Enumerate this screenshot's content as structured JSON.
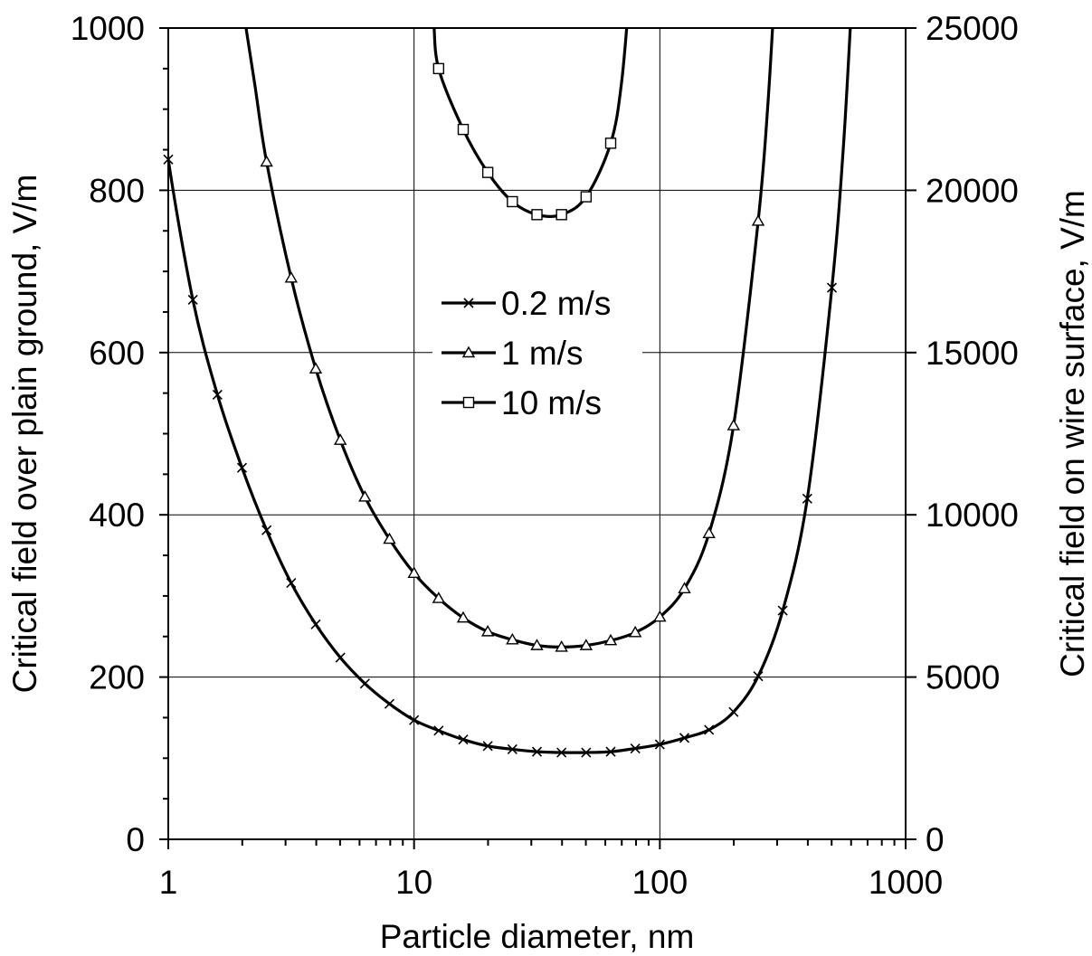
{
  "chart_data": {
    "type": "line",
    "title": "",
    "xlabel": "Particle diameter, nm",
    "ylabel": "Critical field over plain ground, V/m",
    "ylabel_right": "Critical field on wire surface, V/m",
    "xscale": "log",
    "xlim": [
      1,
      1000
    ],
    "ylim": [
      0,
      1000
    ],
    "ylim_right": [
      0,
      25000
    ],
    "x_ticks": [
      1,
      10,
      100,
      1000
    ],
    "x_tick_labels": [
      "1",
      "10",
      "100",
      "1000"
    ],
    "y_ticks": [
      0,
      200,
      400,
      600,
      800,
      1000
    ],
    "y_tick_labels": [
      "0",
      "200",
      "400",
      "600",
      "800",
      "1000"
    ],
    "y_right_ticks": [
      0,
      5000,
      10000,
      15000,
      20000,
      25000
    ],
    "y_right_tick_labels": [
      "0",
      "5000",
      "10000",
      "15000",
      "20000",
      "25000"
    ],
    "grid": true,
    "legend_position": "center",
    "colors": {
      "line": "#000000",
      "grid": "#000000",
      "background": "#ffffff"
    },
    "series": [
      {
        "name": "0.2 m/s",
        "marker": "x",
        "axis": "left",
        "x": [
          1,
          1.259,
          1.585,
          1.995,
          2.512,
          3.162,
          3.981,
          5.012,
          6.31,
          7.943,
          10,
          12.59,
          15.85,
          19.95,
          25.12,
          31.62,
          39.81,
          50.12,
          63.1,
          79.43,
          100,
          125.9,
          158.5,
          199.5,
          251.2,
          316.2,
          398.1,
          501.2
        ],
        "y": [
          838,
          665,
          548,
          458,
          381,
          316,
          265,
          224,
          192,
          167,
          147,
          134,
          123,
          115,
          111,
          108,
          107,
          107,
          108,
          112,
          117,
          125,
          135,
          157,
          201,
          282,
          420,
          680
        ]
      },
      {
        "name": "1 m/s",
        "marker": "triangle",
        "axis": "left",
        "x": [
          2.512,
          3.162,
          3.981,
          5.012,
          6.31,
          7.943,
          10,
          12.59,
          15.85,
          19.95,
          25.12,
          31.62,
          39.81,
          50.12,
          63.1,
          79.43,
          100,
          125.9,
          158.5,
          199.5,
          251.2
        ],
        "y": [
          835,
          692,
          580,
          492,
          422,
          370,
          328,
          297,
          273,
          256,
          246,
          239,
          237,
          239,
          245,
          255,
          274,
          309,
          377,
          510,
          762
        ]
      },
      {
        "name": "10 m/s",
        "marker": "square",
        "axis": "left",
        "x": [
          12.59,
          15.85,
          19.95,
          25.12,
          31.62,
          39.81,
          50.12,
          63.1
        ],
        "y": [
          950,
          875,
          822,
          786,
          770,
          770,
          792,
          858
        ]
      }
    ]
  }
}
